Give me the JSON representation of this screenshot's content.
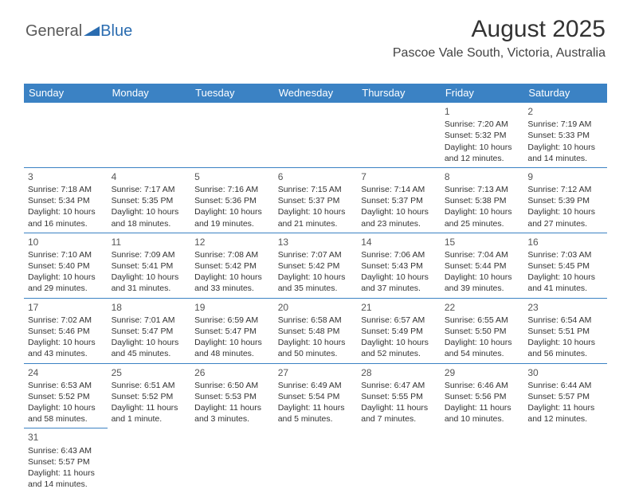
{
  "logo": {
    "part1": "General",
    "part2": "Blue"
  },
  "header": {
    "title": "August 2025",
    "location": "Pascoe Vale South, Victoria, Australia"
  },
  "style": {
    "header_bg": "#3b82c4",
    "header_fg": "#ffffff",
    "border_color": "#3b82c4",
    "body_bg": "#ffffff",
    "text_color": "#333333",
    "daynum_color": "#555555",
    "logo_general_color": "#5a5a5a",
    "logo_blue_color": "#2a6cb0",
    "title_fontsize": 30,
    "location_fontsize": 16,
    "cell_fontsize": 10.5,
    "dayheader_fontsize": 13
  },
  "day_headers": [
    "Sunday",
    "Monday",
    "Tuesday",
    "Wednesday",
    "Thursday",
    "Friday",
    "Saturday"
  ],
  "weeks": [
    [
      null,
      null,
      null,
      null,
      null,
      {
        "n": "1",
        "sr": "7:20 AM",
        "ss": "5:32 PM",
        "dl": "10 hours and 12 minutes."
      },
      {
        "n": "2",
        "sr": "7:19 AM",
        "ss": "5:33 PM",
        "dl": "10 hours and 14 minutes."
      }
    ],
    [
      {
        "n": "3",
        "sr": "7:18 AM",
        "ss": "5:34 PM",
        "dl": "10 hours and 16 minutes."
      },
      {
        "n": "4",
        "sr": "7:17 AM",
        "ss": "5:35 PM",
        "dl": "10 hours and 18 minutes."
      },
      {
        "n": "5",
        "sr": "7:16 AM",
        "ss": "5:36 PM",
        "dl": "10 hours and 19 minutes."
      },
      {
        "n": "6",
        "sr": "7:15 AM",
        "ss": "5:37 PM",
        "dl": "10 hours and 21 minutes."
      },
      {
        "n": "7",
        "sr": "7:14 AM",
        "ss": "5:37 PM",
        "dl": "10 hours and 23 minutes."
      },
      {
        "n": "8",
        "sr": "7:13 AM",
        "ss": "5:38 PM",
        "dl": "10 hours and 25 minutes."
      },
      {
        "n": "9",
        "sr": "7:12 AM",
        "ss": "5:39 PM",
        "dl": "10 hours and 27 minutes."
      }
    ],
    [
      {
        "n": "10",
        "sr": "7:10 AM",
        "ss": "5:40 PM",
        "dl": "10 hours and 29 minutes."
      },
      {
        "n": "11",
        "sr": "7:09 AM",
        "ss": "5:41 PM",
        "dl": "10 hours and 31 minutes."
      },
      {
        "n": "12",
        "sr": "7:08 AM",
        "ss": "5:42 PM",
        "dl": "10 hours and 33 minutes."
      },
      {
        "n": "13",
        "sr": "7:07 AM",
        "ss": "5:42 PM",
        "dl": "10 hours and 35 minutes."
      },
      {
        "n": "14",
        "sr": "7:06 AM",
        "ss": "5:43 PM",
        "dl": "10 hours and 37 minutes."
      },
      {
        "n": "15",
        "sr": "7:04 AM",
        "ss": "5:44 PM",
        "dl": "10 hours and 39 minutes."
      },
      {
        "n": "16",
        "sr": "7:03 AM",
        "ss": "5:45 PM",
        "dl": "10 hours and 41 minutes."
      }
    ],
    [
      {
        "n": "17",
        "sr": "7:02 AM",
        "ss": "5:46 PM",
        "dl": "10 hours and 43 minutes."
      },
      {
        "n": "18",
        "sr": "7:01 AM",
        "ss": "5:47 PM",
        "dl": "10 hours and 45 minutes."
      },
      {
        "n": "19",
        "sr": "6:59 AM",
        "ss": "5:47 PM",
        "dl": "10 hours and 48 minutes."
      },
      {
        "n": "20",
        "sr": "6:58 AM",
        "ss": "5:48 PM",
        "dl": "10 hours and 50 minutes."
      },
      {
        "n": "21",
        "sr": "6:57 AM",
        "ss": "5:49 PM",
        "dl": "10 hours and 52 minutes."
      },
      {
        "n": "22",
        "sr": "6:55 AM",
        "ss": "5:50 PM",
        "dl": "10 hours and 54 minutes."
      },
      {
        "n": "23",
        "sr": "6:54 AM",
        "ss": "5:51 PM",
        "dl": "10 hours and 56 minutes."
      }
    ],
    [
      {
        "n": "24",
        "sr": "6:53 AM",
        "ss": "5:52 PM",
        "dl": "10 hours and 58 minutes."
      },
      {
        "n": "25",
        "sr": "6:51 AM",
        "ss": "5:52 PM",
        "dl": "11 hours and 1 minute."
      },
      {
        "n": "26",
        "sr": "6:50 AM",
        "ss": "5:53 PM",
        "dl": "11 hours and 3 minutes."
      },
      {
        "n": "27",
        "sr": "6:49 AM",
        "ss": "5:54 PM",
        "dl": "11 hours and 5 minutes."
      },
      {
        "n": "28",
        "sr": "6:47 AM",
        "ss": "5:55 PM",
        "dl": "11 hours and 7 minutes."
      },
      {
        "n": "29",
        "sr": "6:46 AM",
        "ss": "5:56 PM",
        "dl": "11 hours and 10 minutes."
      },
      {
        "n": "30",
        "sr": "6:44 AM",
        "ss": "5:57 PM",
        "dl": "11 hours and 12 minutes."
      }
    ],
    [
      {
        "n": "31",
        "sr": "6:43 AM",
        "ss": "5:57 PM",
        "dl": "11 hours and 14 minutes."
      },
      null,
      null,
      null,
      null,
      null,
      null
    ]
  ],
  "labels": {
    "sunrise": "Sunrise:",
    "sunset": "Sunset:",
    "daylight": "Daylight:"
  }
}
